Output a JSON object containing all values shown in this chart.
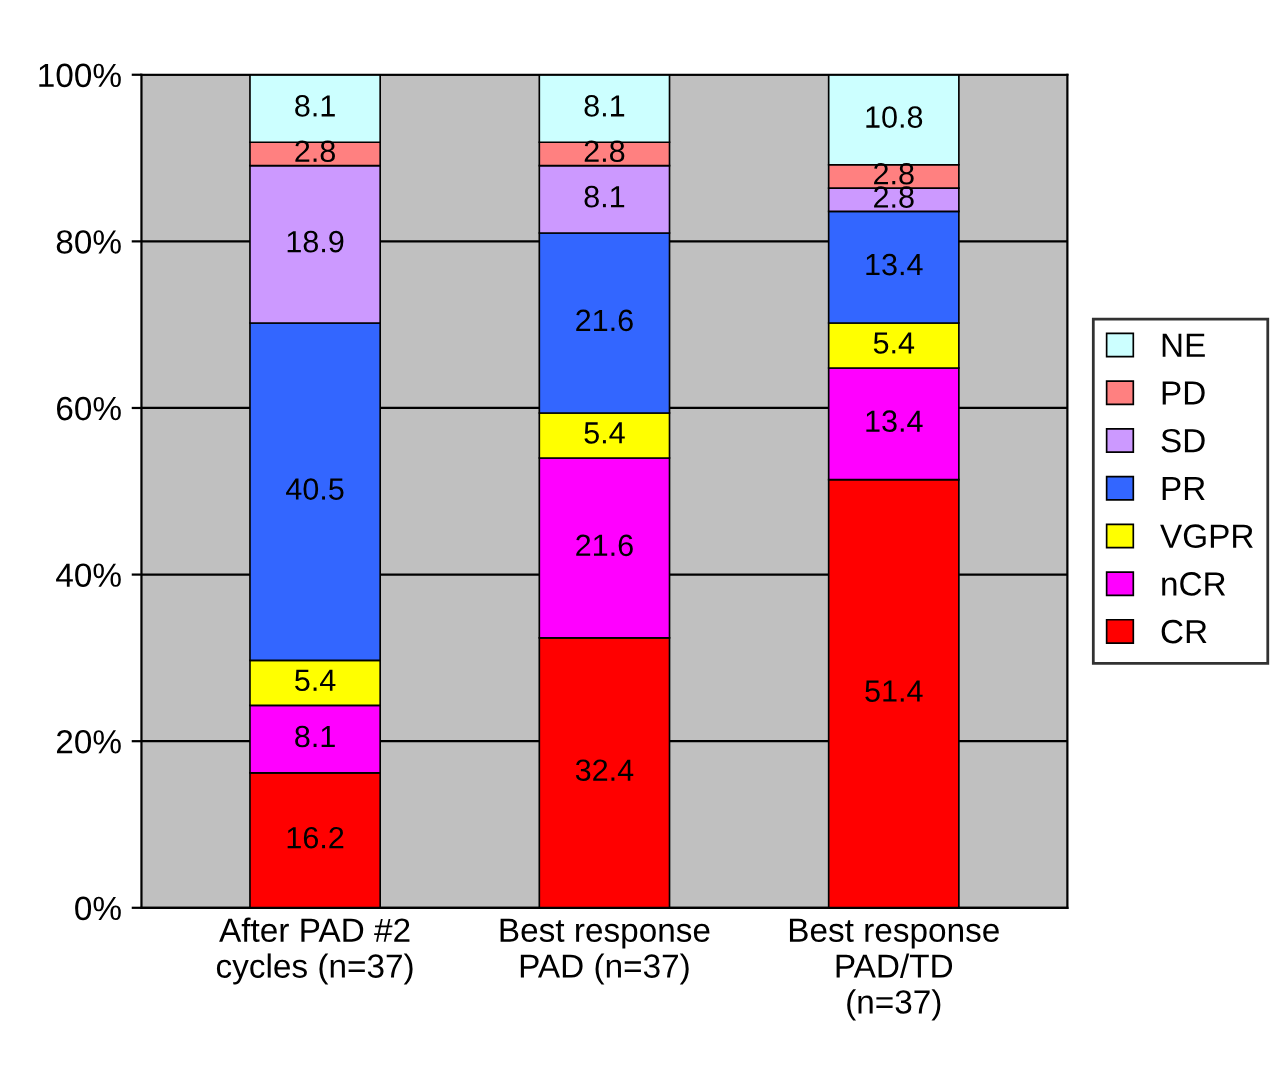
{
  "chart_data": {
    "type": "bar",
    "stacked": true,
    "categories": [
      "After PAD #2\ncycles (n=37)",
      "Best response\nPAD (n=37)",
      "Best response\nPAD/TD\n(n=37)"
    ],
    "series": [
      {
        "name": "CR",
        "color": "#ff0000",
        "values": [
          16.2,
          32.4,
          51.4
        ]
      },
      {
        "name": "nCR",
        "color": "#ff00ff",
        "values": [
          8.1,
          21.6,
          13.4
        ]
      },
      {
        "name": "VGPR",
        "color": "#ffff00",
        "values": [
          5.4,
          5.4,
          5.4
        ]
      },
      {
        "name": "PR",
        "color": "#3366ff",
        "values": [
          40.5,
          21.6,
          13.4
        ]
      },
      {
        "name": "SD",
        "color": "#cc99ff",
        "values": [
          18.9,
          8.1,
          2.8
        ]
      },
      {
        "name": "PD",
        "color": "#ff8080",
        "values": [
          2.8,
          2.8,
          2.8
        ]
      },
      {
        "name": "NE",
        "color": "#ccffff",
        "values": [
          8.1,
          8.1,
          10.8
        ]
      }
    ],
    "ylim": [
      0,
      100
    ],
    "yticks": [
      {
        "value": 0,
        "label": "0%"
      },
      {
        "value": 20,
        "label": "20%"
      },
      {
        "value": 40,
        "label": "40%"
      },
      {
        "value": 60,
        "label": "60%"
      },
      {
        "value": 80,
        "label": "80%"
      },
      {
        "value": 100,
        "label": "100%"
      }
    ],
    "grid": "y",
    "legend": "right",
    "data_labels": true
  }
}
